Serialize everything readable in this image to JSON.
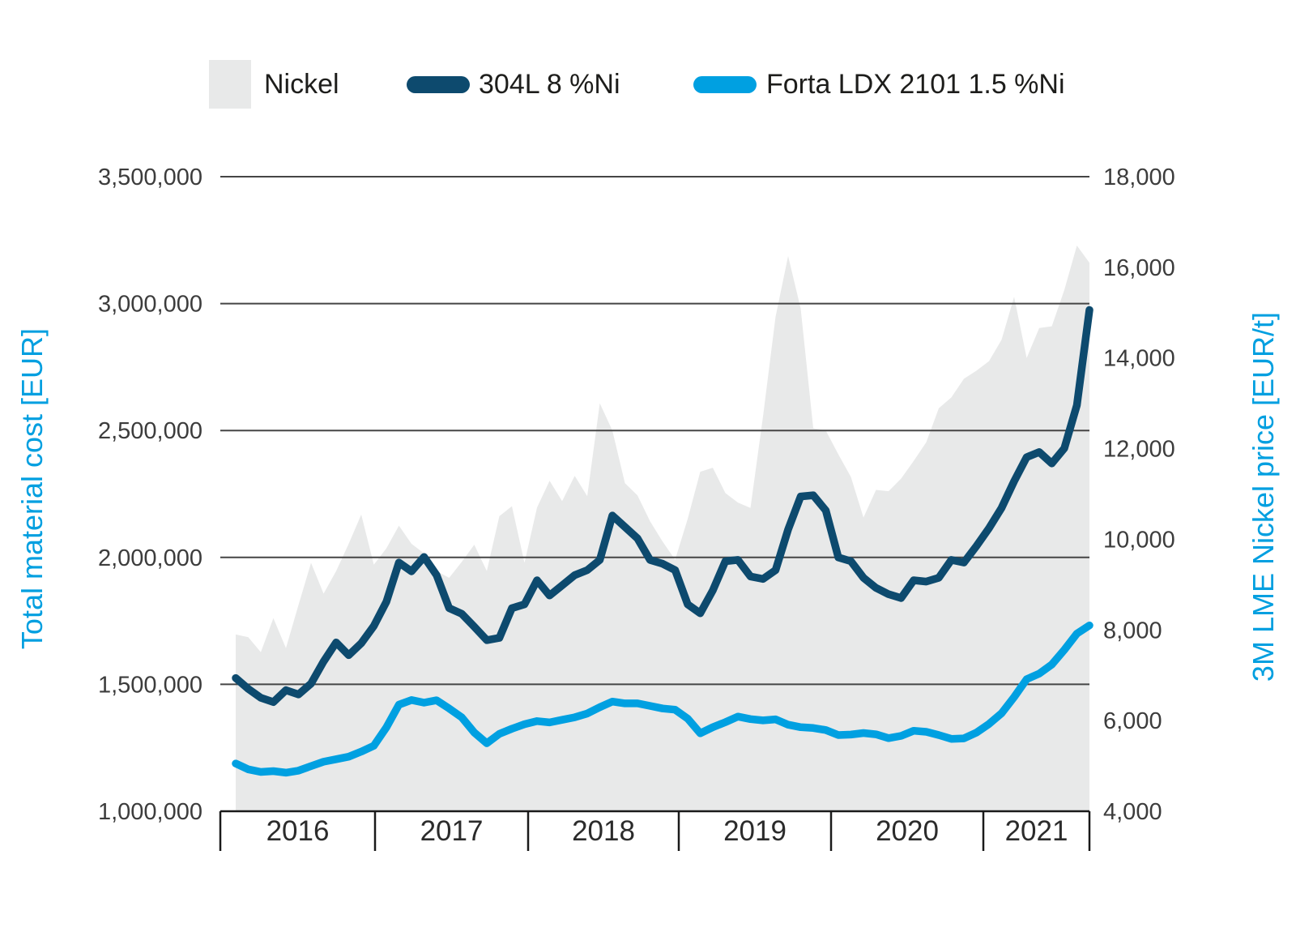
{
  "legend": {
    "nickel_label": "Nickel",
    "l304_label": "304L 8 %Ni",
    "forta_label": "Forta LDX 2101 1.5 %Ni"
  },
  "axes": {
    "left_title": "Total material cost [EUR]",
    "right_title": "3M LME Nickel price [EUR/t]",
    "left_tick_labels": [
      "3,500,000",
      "3,000,000",
      "2,500,000",
      "2,000,000",
      "1,500,000",
      "1,000,000"
    ],
    "right_tick_labels": [
      "18,000",
      "16,000",
      "14,000",
      "12,000",
      "10,000",
      "8,000",
      "6,000",
      "4,000"
    ],
    "year_labels": [
      "2016",
      "2017",
      "2018",
      "2019",
      "2020",
      "2021"
    ]
  },
  "colors": {
    "nickel_area": "#e8e9e9",
    "line_304l": "#0d4a6e",
    "line_forta": "#00a0e1",
    "gridline": "#454545",
    "axis_line": "#1a1a1a",
    "tick_text": "#3c3c3c",
    "axis_title_text": "#009fe0"
  },
  "chart_data": {
    "type": "combo-line-area",
    "x_unit": "month",
    "x_range": "Jan 2016 - Sep 2021",
    "grid": "horizontal-only",
    "legend_position": "top",
    "left_axis": {
      "label": "Total material cost [EUR]",
      "min": 1000000,
      "max": 3500000,
      "tick_step": 500000
    },
    "right_axis": {
      "label": "3M LME Nickel price [EUR/t]",
      "min": 4000,
      "max": 18000,
      "tick_step": 2000
    },
    "series": [
      {
        "name": "Nickel",
        "type": "area",
        "axis": "right",
        "unit": "EUR/t",
        "values": [
          7900,
          7840,
          7510,
          8260,
          7600,
          8550,
          9480,
          8800,
          9300,
          9900,
          10545,
          9440,
          9800,
          10300,
          9900,
          9690,
          9300,
          9150,
          9500,
          9880,
          9300,
          10510,
          10730,
          9480,
          10700,
          11290,
          10840,
          11400,
          10950,
          13000,
          12400,
          11240,
          10970,
          10400,
          9950,
          9550,
          10450,
          11490,
          11580,
          11020,
          10810,
          10690,
          12710,
          14910,
          16250,
          15090,
          12450,
          12400,
          11875,
          11375,
          10480,
          11090,
          11060,
          11340,
          11730,
          12140,
          12890,
          13130,
          13540,
          13720,
          13930,
          14400,
          15350,
          14000,
          14660,
          14700,
          15500,
          16480,
          16100
        ]
      },
      {
        "name": "304L 8 %Ni",
        "type": "line",
        "axis": "left",
        "unit": "EUR",
        "values": [
          1525000,
          1482000,
          1447000,
          1430000,
          1477000,
          1460000,
          1503000,
          1590000,
          1665000,
          1615000,
          1662000,
          1730000,
          1825000,
          1980000,
          1945000,
          2002000,
          1930000,
          1800000,
          1778000,
          1727000,
          1674000,
          1683000,
          1800000,
          1815000,
          1910000,
          1850000,
          1890000,
          1930000,
          1950000,
          1990000,
          2165000,
          2120000,
          2075000,
          1990000,
          1975000,
          1950000,
          1815000,
          1780000,
          1870000,
          1985000,
          1990000,
          1925000,
          1915000,
          1950000,
          2110000,
          2240000,
          2245000,
          2185000,
          2000000,
          1985000,
          1920000,
          1880000,
          1855000,
          1840000,
          1910000,
          1905000,
          1920000,
          1990000,
          1980000,
          2045000,
          2115000,
          2195000,
          2300000,
          2395000,
          2415000,
          2370000,
          2430000,
          2600000,
          2975000
        ]
      },
      {
        "name": "Forta LDX 2101 1.5 %Ni",
        "type": "line",
        "axis": "left",
        "unit": "EUR",
        "values": [
          1188000,
          1165000,
          1155000,
          1158000,
          1152000,
          1160000,
          1178000,
          1195000,
          1205000,
          1215000,
          1235000,
          1258000,
          1330000,
          1420000,
          1438000,
          1428000,
          1437000,
          1405000,
          1370000,
          1310000,
          1268000,
          1305000,
          1325000,
          1343000,
          1355000,
          1350000,
          1360000,
          1370000,
          1385000,
          1410000,
          1432000,
          1425000,
          1425000,
          1415000,
          1405000,
          1400000,
          1365000,
          1307000,
          1331000,
          1351000,
          1373000,
          1363000,
          1358000,
          1362000,
          1341000,
          1331000,
          1328000,
          1320000,
          1300000,
          1302000,
          1308000,
          1303000,
          1288000,
          1297000,
          1317000,
          1313000,
          1300000,
          1285000,
          1287000,
          1310000,
          1344000,
          1386000,
          1450000,
          1520000,
          1542000,
          1578000,
          1636000,
          1700000,
          1732000
        ]
      }
    ]
  }
}
